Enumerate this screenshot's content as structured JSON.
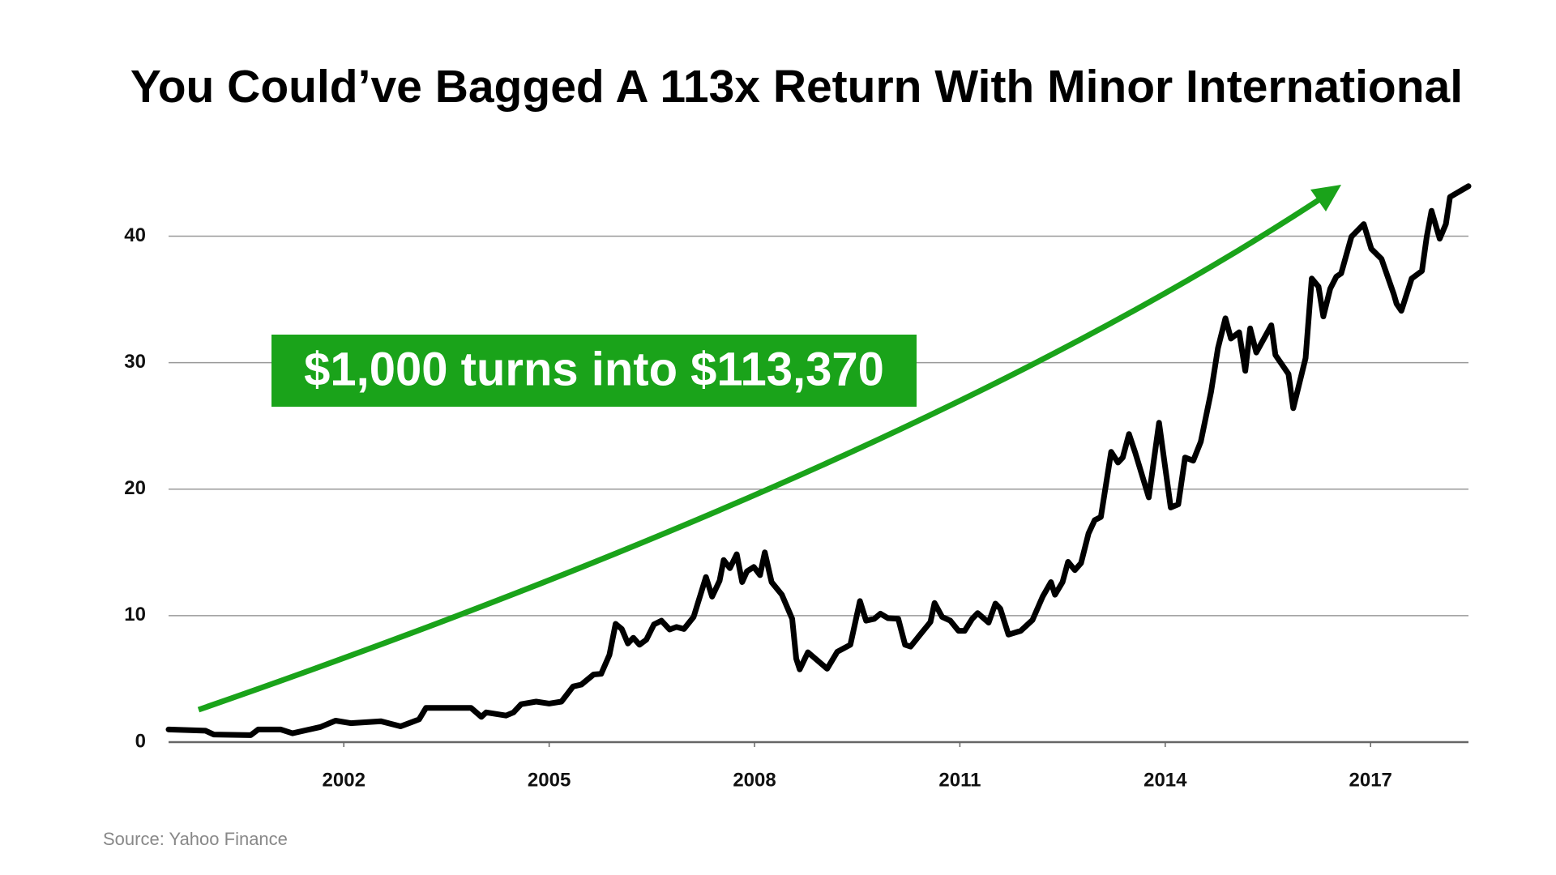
{
  "chart_data": {
    "type": "line",
    "title": "You Could’ve Bagged A 113x Return With Minor International",
    "annotation": "$1,000 turns into $113,370",
    "source": "Source: Yahoo Finance",
    "color": "#000000",
    "annotation_color": "#1aa31a",
    "grid": true,
    "x": [
      1999.44,
      1999.98,
      2000.1,
      2000.64,
      2000.75,
      2001.08,
      2001.25,
      2001.66,
      2001.88,
      2002.1,
      2002.54,
      2002.83,
      2003.1,
      2003.2,
      2003.86,
      2004.01,
      2004.08,
      2004.37,
      2004.48,
      2004.59,
      2004.81,
      2005.0,
      2005.18,
      2005.35,
      2005.47,
      2005.65,
      2005.76,
      2005.88,
      2005.97,
      2006.06,
      2006.15,
      2006.23,
      2006.32,
      2006.42,
      2006.53,
      2006.64,
      2006.76,
      2006.86,
      2006.97,
      2007.11,
      2007.29,
      2007.38,
      2007.49,
      2007.55,
      2007.64,
      2007.74,
      2007.82,
      2007.89,
      2007.99,
      2008.08,
      2008.15,
      2008.25,
      2008.4,
      2008.55,
      2008.61,
      2008.66,
      2008.78,
      2008.91,
      2009.06,
      2009.21,
      2009.4,
      2009.54,
      2009.63,
      2009.75,
      2009.84,
      2009.95,
      2010.1,
      2010.2,
      2010.28,
      2010.42,
      2010.57,
      2010.63,
      2010.74,
      2010.86,
      2010.98,
      2011.07,
      2011.18,
      2011.26,
      2011.42,
      2011.52,
      2011.59,
      2011.71,
      2011.89,
      2012.06,
      2012.21,
      2012.33,
      2012.39,
      2012.5,
      2012.58,
      2012.68,
      2012.77,
      2012.88,
      2012.97,
      2013.06,
      2013.21,
      2013.31,
      2013.38,
      2013.47,
      2013.56,
      2013.76,
      2013.91,
      2014.08,
      2014.19,
      2014.29,
      2014.41,
      2014.52,
      2014.67,
      2014.77,
      2014.88,
      2014.96,
      2015.08,
      2015.17,
      2015.24,
      2015.33,
      2015.55,
      2015.61,
      2015.8,
      2015.87,
      2016.05,
      2016.14,
      2016.24,
      2016.31,
      2016.41,
      2016.5,
      2016.57,
      2016.72,
      2016.9,
      2017.01,
      2017.16,
      2017.34,
      2017.38,
      2017.45,
      2017.6,
      2017.75,
      2017.82,
      2017.89,
      2018.01,
      2018.1,
      2018.16,
      2018.43
    ],
    "values": [
      1.0,
      0.9,
      0.6,
      0.55,
      1.0,
      1.0,
      0.7,
      1.2,
      1.7,
      1.5,
      1.65,
      1.25,
      1.8,
      2.7,
      2.7,
      2.0,
      2.35,
      2.1,
      2.35,
      3.0,
      3.2,
      3.05,
      3.2,
      4.4,
      4.55,
      5.35,
      5.4,
      6.9,
      9.35,
      8.95,
      7.8,
      8.25,
      7.7,
      8.1,
      9.3,
      9.6,
      8.9,
      9.1,
      8.95,
      9.9,
      13.05,
      11.5,
      12.75,
      14.4,
      13.75,
      14.85,
      12.65,
      13.5,
      13.85,
      13.2,
      15.0,
      12.65,
      11.65,
      9.75,
      6.6,
      5.75,
      7.1,
      6.5,
      5.8,
      7.15,
      7.7,
      11.15,
      9.6,
      9.75,
      10.15,
      9.8,
      9.75,
      7.7,
      7.55,
      8.5,
      9.5,
      11.0,
      9.9,
      9.6,
      8.8,
      8.8,
      9.75,
      10.2,
      9.45,
      10.95,
      10.55,
      8.5,
      8.8,
      9.65,
      11.5,
      12.65,
      11.65,
      12.65,
      14.25,
      13.6,
      14.15,
      16.5,
      17.55,
      17.8,
      22.95,
      22.1,
      22.5,
      24.35,
      22.9,
      19.35,
      25.25,
      18.55,
      18.8,
      22.5,
      22.25,
      23.75,
      27.7,
      31.15,
      33.5,
      31.9,
      32.4,
      29.35,
      32.7,
      30.8,
      32.95,
      30.6,
      29.1,
      26.4,
      30.35,
      36.65,
      36.0,
      33.65,
      35.85,
      36.8,
      37.05,
      39.95,
      40.95,
      39.0,
      38.2,
      35.4,
      34.65,
      34.1,
      36.65,
      37.25,
      39.95,
      42.0,
      39.8,
      40.95,
      43.1,
      43.95
    ],
    "xlim": [
      1999.44,
      2018.43
    ],
    "xticks": [
      2002,
      2005,
      2008,
      2011,
      2014,
      2017
    ],
    "ylim": [
      0,
      44
    ],
    "yticks": [
      0,
      10,
      20,
      30,
      40
    ]
  }
}
